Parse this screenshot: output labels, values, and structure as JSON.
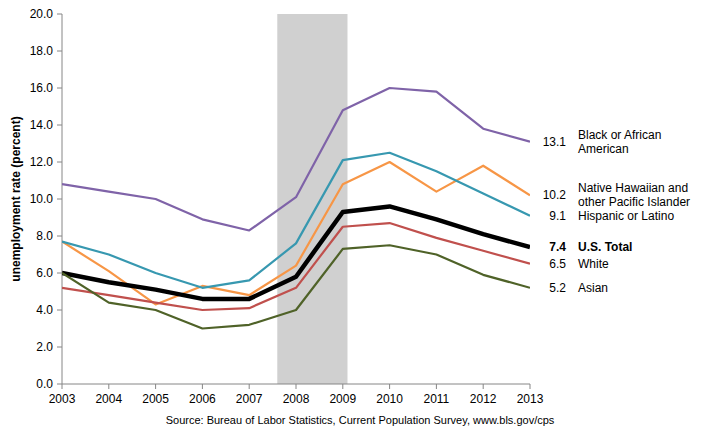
{
  "chart_data": {
    "type": "line",
    "y_label": "unemployment rate (percent)",
    "source": "Source: Bureau of Labor Statistics, Current Population Survey, www.bls.gov/cps",
    "x": [
      2003,
      2004,
      2005,
      2006,
      2007,
      2008,
      2009,
      2010,
      2011,
      2012,
      2013
    ],
    "xlim": [
      2003,
      2013
    ],
    "xticks": [
      2003,
      2004,
      2005,
      2006,
      2007,
      2008,
      2009,
      2010,
      2011,
      2012,
      2013
    ],
    "ylim": [
      0,
      20
    ],
    "yticks": [
      {
        "value": 0,
        "label": "0.0"
      },
      {
        "value": 2,
        "label": "2.0"
      },
      {
        "value": 4,
        "label": "4.0"
      },
      {
        "value": 6,
        "label": "6.0"
      },
      {
        "value": 8,
        "label": "8.0"
      },
      {
        "value": 10,
        "label": "10.0"
      },
      {
        "value": 12,
        "label": "12.0"
      },
      {
        "value": 14,
        "label": "14.0"
      },
      {
        "value": 16,
        "label": "16.0"
      },
      {
        "value": 18,
        "label": "18.0"
      },
      {
        "value": 20,
        "label": "20.0"
      }
    ],
    "grid": false,
    "shaded_x": [
      2007.6,
      2009.1
    ],
    "series": [
      {
        "name": "Black or African American",
        "color": "#7f63a8",
        "values": [
          10.8,
          10.4,
          10.0,
          8.9,
          8.3,
          10.1,
          14.8,
          16.0,
          15.8,
          13.8,
          13.1
        ]
      },
      {
        "name": "Native Hawaiian and other Pacific Islander",
        "color": "#f79646",
        "values": [
          7.7,
          6.1,
          4.3,
          5.3,
          4.8,
          6.4,
          10.8,
          12.0,
          10.4,
          11.8,
          10.2
        ]
      },
      {
        "name": "Hispanic or Latino",
        "color": "#3798b0",
        "values": [
          7.7,
          7.0,
          6.0,
          5.2,
          5.6,
          7.6,
          12.1,
          12.5,
          11.5,
          10.3,
          9.1
        ]
      },
      {
        "name": "U.S. Total",
        "color": "#000000",
        "values": [
          6.0,
          5.5,
          5.1,
          4.6,
          4.6,
          5.8,
          9.3,
          9.6,
          8.9,
          8.1,
          7.4
        ]
      },
      {
        "name": "White",
        "color": "#c0504d",
        "values": [
          5.2,
          4.8,
          4.4,
          4.0,
          4.1,
          5.2,
          8.5,
          8.7,
          7.9,
          7.2,
          6.5
        ]
      },
      {
        "name": "Asian",
        "color": "#4f6228",
        "values": [
          6.0,
          4.4,
          4.0,
          3.0,
          3.2,
          4.0,
          7.3,
          7.5,
          7.0,
          5.9,
          5.2
        ]
      }
    ]
  }
}
